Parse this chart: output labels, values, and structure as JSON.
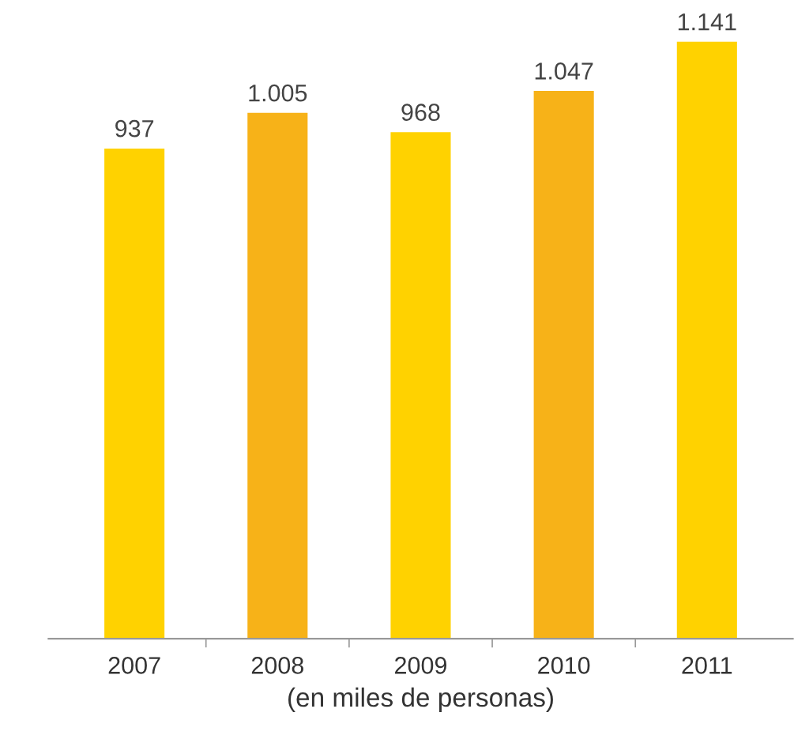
{
  "chart_data": {
    "type": "bar",
    "xlabel": "(en miles de personas)",
    "categories": [
      "2007",
      "2008",
      "2009",
      "2010",
      "2011"
    ],
    "values": [
      937,
      1005,
      968,
      1047,
      1141
    ],
    "colors": [
      "#ffd200",
      "#f7b218",
      "#ffd200",
      "#f7b218",
      "#ffd200"
    ],
    "value_labels": [
      "937",
      "1.005",
      "968",
      "1.047",
      "1.141"
    ],
    "tick_labels": "x",
    "grid": false,
    "legend": false
  }
}
